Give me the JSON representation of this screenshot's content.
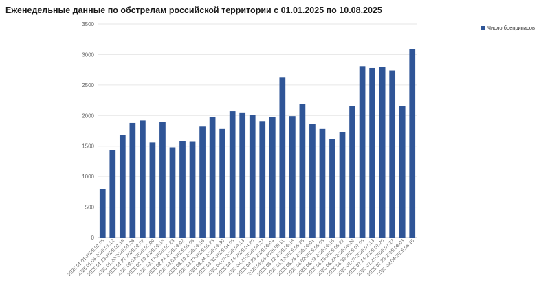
{
  "chart_data": {
    "type": "bar",
    "title": "Еженедельные данные по обстрелам российской территории с 01.01.2025 по 10.08.2025",
    "xlabel": "",
    "ylabel": "",
    "ylim": [
      0,
      3500
    ],
    "yticks": [
      0,
      500,
      1000,
      1500,
      2000,
      2500,
      3000,
      3500
    ],
    "grid": true,
    "legend_position": "top-right",
    "color": "#2F5597",
    "categories": [
      "2025.01.01-2025.01.05",
      "2025.01.06-2025.01.12",
      "2025.01.13-2025.01.19",
      "2025.01.20-2025.01.26",
      "2025.01.27-2025.02.02",
      "2025.02.03-2025.02.09",
      "2025.02.10-2025.02.16",
      "2025.02.17-2025.02.23",
      "2025.02.24-2025.03.02",
      "2025.03.03-2025.03.09",
      "2025.03.10-2025.03.16",
      "2025.03.17-2025.03.23",
      "2025.03.24-2025.03.30",
      "2025.03.31-2025.04.06",
      "2025.04.07-2025.04.13",
      "2025.04.14-2025.04.20",
      "2025.04.21-2025.04.27",
      "2025.04.28-2025.05.04",
      "2025.05.05-2025.05.11",
      "2025.05.12-2025.05.18",
      "2025.05.19-2025.05.25",
      "2025.05.26-2025.06.01",
      "2025.06.02-2025.06.08",
      "2025.06.09-2025.06.15",
      "2025.06.16-2025.06.22",
      "2025.06.23-2025.06.29",
      "2025.06.30-2025.07.06",
      "2025.07.07-2025.07.13",
      "2025.07.14-2025.07.20",
      "2025.07.21-2025.07.27",
      "2025.07.28-2025.08.03",
      "2025.08.04-2025.08.10"
    ],
    "series": [
      {
        "name": "Число боеприпасов",
        "values": [
          790,
          1430,
          1680,
          1880,
          1920,
          1560,
          1900,
          1480,
          1580,
          1570,
          1820,
          1970,
          1780,
          2070,
          2050,
          2010,
          1910,
          1970,
          2630,
          1990,
          2190,
          1860,
          1780,
          1620,
          1730,
          2150,
          2810,
          2780,
          2800,
          2740,
          2160,
          3090
        ]
      }
    ]
  }
}
